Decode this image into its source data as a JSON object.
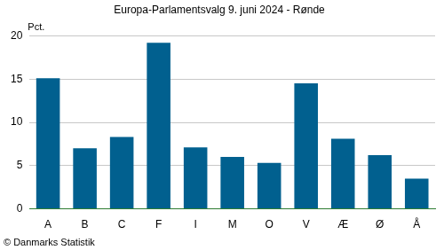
{
  "chart_data": {
    "type": "bar",
    "title": "Europa-Parlamentsvalg 9. juni 2024 - Rønde",
    "y_label": "Pct.",
    "source": "© Danmarks Statistik",
    "categories": [
      "A",
      "B",
      "C",
      "F",
      "I",
      "M",
      "O",
      "V",
      "Æ",
      "Ø",
      "Å"
    ],
    "values": [
      15.1,
      7.0,
      8.3,
      19.2,
      7.1,
      6.0,
      5.3,
      14.5,
      8.1,
      6.2,
      3.5
    ],
    "color": "#01608f",
    "ylim": [
      0,
      20
    ],
    "yticks": [
      0,
      5,
      10,
      15,
      20
    ],
    "grid": true
  }
}
